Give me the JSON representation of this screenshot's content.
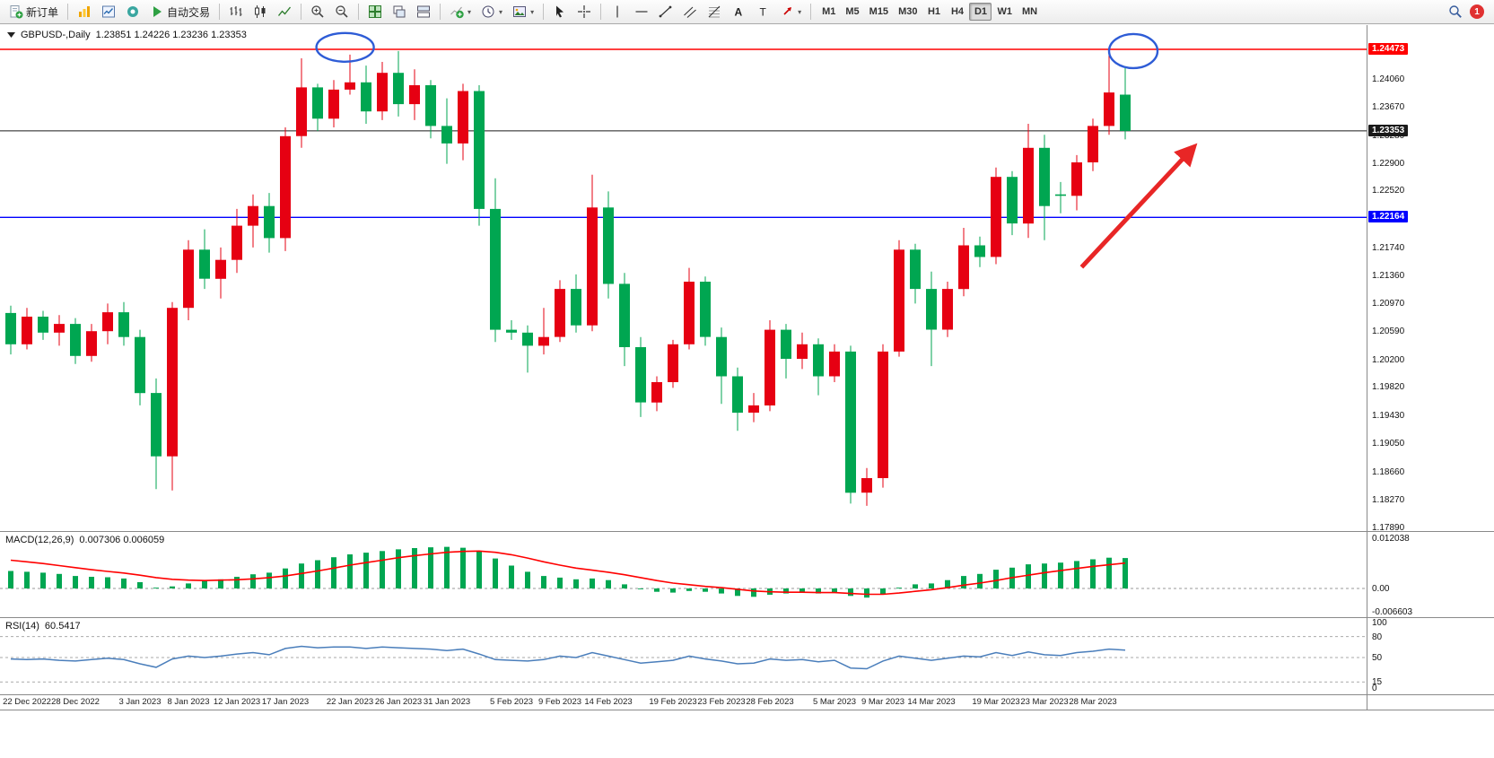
{
  "colors": {
    "up": "#e60012",
    "down": "#00a651",
    "macd_histogram": "#00a651",
    "macd_signal": "#ff0000",
    "rsi_line": "#4a7ebb",
    "annotation": "#2e5cd6",
    "arrow": "#e82626"
  },
  "toolbar": {
    "new_order_label": "新订单",
    "autotrading_label": "自动交易",
    "timeframes": [
      "M1",
      "M5",
      "M15",
      "M30",
      "H1",
      "H4",
      "D1",
      "W1",
      "MN"
    ],
    "active_timeframe": "D1",
    "notification_count": "1",
    "icon_names": [
      "new-order-icon",
      "chart-wizard-icon",
      "market-watch-icon",
      "navigator-icon",
      "autotrading-play-icon",
      "bar-chart-icon",
      "candlestick-chart-icon",
      "line-chart-icon",
      "zoom-in-icon",
      "zoom-out-icon",
      "tile-windows-icon",
      "cascade-windows-icon",
      "tile-horizontal-icon",
      "add-indicator-icon",
      "periods-clock-icon",
      "template-icon",
      "cursor-icon",
      "crosshair-icon",
      "vertical-line-icon",
      "horizontal-line-icon",
      "trendline-icon",
      "equidistant-channel-icon",
      "fibonacci-icon",
      "text-icon",
      "text-label-icon",
      "arrows-tool-icon",
      "search-icon",
      "notification-badge"
    ]
  },
  "chart": {
    "symbol_title": "GBPUSD-,Daily",
    "ohlc": "1.23851 1.24226 1.23236 1.23353",
    "price_axis_labels": [
      "1.24060",
      "1.23670",
      "1.23280",
      "1.22900",
      "1.22520",
      "1.22130",
      "1.21740",
      "1.21360",
      "1.20970",
      "1.20590",
      "1.20200",
      "1.19820",
      "1.19430",
      "1.19050",
      "1.18660",
      "1.18270",
      "1.17890"
    ],
    "price_tags": {
      "resistance": "1.24473",
      "current": "1.23353",
      "support": "1.22164"
    }
  },
  "chart_data": [
    {
      "type": "candlestick",
      "title": "GBPUSD- Daily",
      "y_range": [
        1.17853,
        1.24806
      ],
      "x_labels": [
        [
          "22 Dec 2022",
          1
        ],
        [
          "28 Dec 2022",
          4
        ],
        [
          "3 Jan 2023",
          8
        ],
        [
          "8 Jan 2023",
          11
        ],
        [
          "12 Jan 2023",
          14
        ],
        [
          "17 Jan 2023",
          17
        ],
        [
          "22 Jan 2023",
          21
        ],
        [
          "26 Jan 2023",
          24
        ],
        [
          "31 Jan 2023",
          27
        ],
        [
          "5 Feb 2023",
          31
        ],
        [
          "9 Feb 2023",
          34
        ],
        [
          "14 Feb 2023",
          37
        ],
        [
          "19 Feb 2023",
          41
        ],
        [
          "23 Feb 2023",
          44
        ],
        [
          "28 Feb 2023",
          47
        ],
        [
          "5 Mar 2023",
          51
        ],
        [
          "9 Mar 2023",
          54
        ],
        [
          "14 Mar 2023",
          57
        ],
        [
          "19 Mar 2023",
          61
        ],
        [
          "23 Mar 2023",
          64
        ],
        [
          "28 Mar 2023",
          67
        ]
      ],
      "ohlc": [
        [
          1.2085,
          1.2095,
          1.2028,
          1.2042
        ],
        [
          1.2042,
          1.2092,
          1.2035,
          1.208
        ],
        [
          1.208,
          1.2088,
          1.2048,
          1.2058
        ],
        [
          1.2058,
          1.2082,
          1.204,
          1.207
        ],
        [
          1.207,
          1.2078,
          1.2015,
          1.2026
        ],
        [
          1.2026,
          1.207,
          1.2018,
          1.206
        ],
        [
          1.206,
          1.2098,
          1.2042,
          1.2086
        ],
        [
          1.2086,
          1.21,
          1.204,
          1.2052
        ],
        [
          1.2052,
          1.2062,
          1.1958,
          1.1975
        ],
        [
          1.1975,
          1.1995,
          1.1843,
          1.1888
        ],
        [
          1.1888,
          1.21,
          1.1841,
          1.2092
        ],
        [
          1.2092,
          1.2185,
          1.2075,
          1.2172
        ],
        [
          1.2172,
          1.22,
          1.2118,
          1.2132
        ],
        [
          1.2132,
          1.2175,
          1.2105,
          1.2158
        ],
        [
          1.2158,
          1.2228,
          1.214,
          1.2205
        ],
        [
          1.2205,
          1.2248,
          1.2175,
          1.2232
        ],
        [
          1.2232,
          1.225,
          1.2168,
          1.2188
        ],
        [
          1.2188,
          1.234,
          1.217,
          1.2328
        ],
        [
          1.2328,
          1.2435,
          1.2312,
          1.2395
        ],
        [
          1.2395,
          1.24,
          1.2335,
          1.2352
        ],
        [
          1.2352,
          1.2405,
          1.234,
          1.2392
        ],
        [
          1.2392,
          1.244,
          1.2385,
          1.2402
        ],
        [
          1.2402,
          1.2425,
          1.2345,
          1.2362
        ],
        [
          1.2362,
          1.243,
          1.235,
          1.2415
        ],
        [
          1.2415,
          1.2445,
          1.2355,
          1.2372
        ],
        [
          1.2372,
          1.242,
          1.235,
          1.2398
        ],
        [
          1.2398,
          1.2405,
          1.2325,
          1.2342
        ],
        [
          1.2342,
          1.238,
          1.229,
          1.2318
        ],
        [
          1.2318,
          1.24,
          1.2295,
          1.239
        ],
        [
          1.239,
          1.2398,
          1.2205,
          1.2228
        ],
        [
          1.2228,
          1.227,
          1.2045,
          1.2062
        ],
        [
          1.2062,
          1.2075,
          1.2048,
          1.2058
        ],
        [
          1.2058,
          1.2068,
          1.2003,
          1.204
        ],
        [
          1.204,
          1.2092,
          1.2028,
          1.2052
        ],
        [
          1.2052,
          1.213,
          1.2045,
          1.2118
        ],
        [
          1.2118,
          1.2138,
          1.2058,
          1.2068
        ],
        [
          1.2068,
          1.2275,
          1.206,
          1.223
        ],
        [
          1.223,
          1.2252,
          1.2105,
          1.2125
        ],
        [
          1.2125,
          1.214,
          1.2012,
          1.2038
        ],
        [
          1.2038,
          1.2052,
          1.1942,
          1.1962
        ],
        [
          1.1962,
          1.1998,
          1.195,
          1.199
        ],
        [
          1.199,
          1.2048,
          1.1982,
          1.2042
        ],
        [
          1.2042,
          1.2147,
          1.2035,
          1.2128
        ],
        [
          1.2128,
          1.2135,
          1.204,
          1.2052
        ],
        [
          1.2052,
          1.2065,
          1.196,
          1.1998
        ],
        [
          1.1998,
          1.201,
          1.1923,
          1.1948
        ],
        [
          1.1948,
          1.1975,
          1.1935,
          1.1958
        ],
        [
          1.1958,
          1.2075,
          1.195,
          1.2062
        ],
        [
          1.2062,
          1.207,
          1.1995,
          1.2022
        ],
        [
          1.2022,
          1.2058,
          1.2008,
          1.2042
        ],
        [
          1.2042,
          1.205,
          1.1972,
          1.1998
        ],
        [
          1.1998,
          1.2042,
          1.199,
          1.2032
        ],
        [
          1.2032,
          1.204,
          1.1823,
          1.1838
        ],
        [
          1.1838,
          1.1872,
          1.182,
          1.1858
        ],
        [
          1.1858,
          1.2042,
          1.1845,
          1.2032
        ],
        [
          1.2032,
          1.2185,
          1.2025,
          1.2172
        ],
        [
          1.2172,
          1.218,
          1.2098,
          1.2118
        ],
        [
          1.2118,
          1.2142,
          1.2012,
          1.2062
        ],
        [
          1.2062,
          1.2128,
          1.2052,
          1.2118
        ],
        [
          1.2118,
          1.2202,
          1.2108,
          1.2178
        ],
        [
          1.2178,
          1.219,
          1.2148,
          1.2162
        ],
        [
          1.2162,
          1.2285,
          1.2152,
          1.2272
        ],
        [
          1.2272,
          1.228,
          1.2192,
          1.2208
        ],
        [
          1.2208,
          1.2345,
          1.2188,
          1.2312
        ],
        [
          1.2312,
          1.233,
          1.2185,
          1.2232
        ],
        [
          1.2248,
          1.2265,
          1.2222,
          1.2246
        ],
        [
          1.2246,
          1.2302,
          1.2226,
          1.2292
        ],
        [
          1.2292,
          1.2352,
          1.228,
          1.2342
        ],
        [
          1.2342,
          1.244,
          1.233,
          1.2388
        ],
        [
          1.23851,
          1.24226,
          1.23236,
          1.23353
        ]
      ],
      "levels": [
        {
          "price": 1.24473,
          "color": "#ff0000",
          "width": 1.4,
          "tag": "resistance"
        },
        {
          "price": 1.23353,
          "color": "#1a1a1a",
          "width": 1,
          "tag": "current"
        },
        {
          "price": 1.22164,
          "color": "#0000ff",
          "width": 1.4,
          "tag": "support"
        }
      ],
      "annotations": [
        {
          "type": "ellipse",
          "bar": 20.7,
          "price": 1.245,
          "bar_radius": 1.78,
          "price_radius": 0.00197
        },
        {
          "type": "ellipse",
          "bar": 69.5,
          "price": 1.2445,
          "bar_radius": 1.5,
          "price_radius": 0.00234
        },
        {
          "type": "arrow",
          "from_bar": 66.3,
          "from_price": 1.2148,
          "to_bar": 73.2,
          "to_price": 1.2312,
          "width": 5
        }
      ]
    },
    {
      "type": "bar",
      "name": "MACD(12,26,9)",
      "current_values": "0.007306 0.006059",
      "axis_labels": [
        "0.012038",
        "0.00",
        "-0.006603"
      ],
      "y_range": [
        -0.0069,
        0.0138
      ],
      "values": [
        0.0042,
        0.004,
        0.0038,
        0.0035,
        0.003,
        0.0028,
        0.0027,
        0.0024,
        0.0015,
        0.0002,
        0.0005,
        0.0012,
        0.0018,
        0.0022,
        0.0028,
        0.0034,
        0.0038,
        0.0048,
        0.006,
        0.0068,
        0.0075,
        0.0082,
        0.0086,
        0.009,
        0.0094,
        0.0097,
        0.0099,
        0.01,
        0.0098,
        0.009,
        0.0072,
        0.0055,
        0.004,
        0.003,
        0.0026,
        0.0022,
        0.0024,
        0.002,
        0.001,
        -0.0002,
        -0.0008,
        -0.001,
        -0.0006,
        -0.0008,
        -0.0012,
        -0.0018,
        -0.002,
        -0.0015,
        -0.0012,
        -0.001,
        -0.0012,
        -0.001,
        -0.0018,
        -0.0022,
        -0.0015,
        0.0002,
        0.001,
        0.0012,
        0.002,
        0.003,
        0.0035,
        0.0045,
        0.005,
        0.0058,
        0.006,
        0.0062,
        0.0066,
        0.007,
        0.0074,
        0.0073
      ],
      "signal": [
        0.0068,
        0.0064,
        0.006,
        0.0055,
        0.005,
        0.0045,
        0.0041,
        0.0037,
        0.0032,
        0.0026,
        0.0022,
        0.002,
        0.0019,
        0.002,
        0.0021,
        0.0023,
        0.0026,
        0.003,
        0.0036,
        0.0042,
        0.0049,
        0.0056,
        0.0062,
        0.0068,
        0.0074,
        0.0079,
        0.0083,
        0.0087,
        0.0089,
        0.009,
        0.0087,
        0.0081,
        0.0073,
        0.0064,
        0.0056,
        0.0049,
        0.0044,
        0.0039,
        0.0033,
        0.0026,
        0.0019,
        0.0013,
        0.0009,
        0.0005,
        0.0002,
        -0.0002,
        -0.0006,
        -0.0008,
        -0.0009,
        -0.0009,
        -0.001,
        -0.001,
        -0.0012,
        -0.0014,
        -0.0014,
        -0.0011,
        -0.0007,
        -0.0003,
        0.0002,
        0.0008,
        0.0013,
        0.0019,
        0.0026,
        0.0032,
        0.0038,
        0.0043,
        0.0048,
        0.0053,
        0.0057,
        0.0061
      ]
    },
    {
      "type": "line",
      "name": "RSI(14)",
      "current_value": "60.5417",
      "axis_labels": [
        "100",
        "80",
        "50",
        "15",
        "0"
      ],
      "levels": [
        80,
        50,
        15
      ],
      "y_range": [
        0,
        100
      ],
      "values": [
        48,
        47,
        48,
        46,
        45,
        47,
        49,
        47,
        41,
        36,
        48,
        52,
        50,
        52,
        55,
        57,
        54,
        63,
        66,
        64,
        65,
        65,
        63,
        65,
        64,
        63,
        62,
        60,
        62,
        55,
        47,
        46,
        45,
        47,
        52,
        50,
        57,
        52,
        47,
        42,
        44,
        46,
        52,
        48,
        45,
        41,
        42,
        48,
        46,
        47,
        44,
        46,
        35,
        34,
        45,
        52,
        49,
        46,
        49,
        52,
        51,
        57,
        53,
        58,
        54,
        53,
        57,
        59,
        62,
        60.5
      ]
    }
  ]
}
